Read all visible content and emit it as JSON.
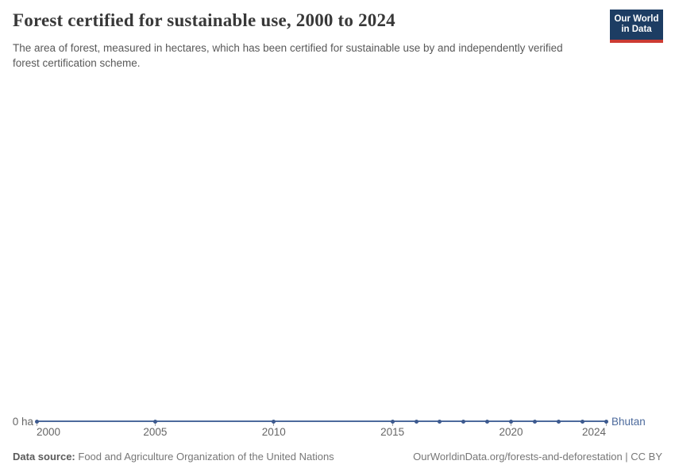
{
  "header": {
    "title": "Forest certified for sustainable use, 2000 to 2024",
    "subtitle": "The area of forest, measured in hectares, which has been certified for sustainable use by and independently verified forest certification scheme.",
    "logo": {
      "line1": "Our World",
      "line2": "in Data",
      "bg_color": "#1d3d63",
      "bar_color": "#cc3b33"
    }
  },
  "chart_data": {
    "type": "line",
    "title": "Forest certified for sustainable use, 2000 to 2024",
    "unit": "ha",
    "grid": false,
    "legend_position": "inline-end-label",
    "x_range": [
      2000,
      2024
    ],
    "x_ticks": [
      2000,
      2005,
      2010,
      2015,
      2020,
      2024
    ],
    "ylim": [
      0,
      0
    ],
    "y_zero_label": "0 ha",
    "series": [
      {
        "name": "Bhutan",
        "color": "#4c6a9c",
        "marker_color": "#3d5a8f",
        "x": [
          2000,
          2005,
          2010,
          2015,
          2016,
          2017,
          2018,
          2019,
          2020,
          2021,
          2022,
          2023,
          2024
        ],
        "values": [
          0,
          0,
          0,
          0,
          0,
          0,
          0,
          0,
          0,
          0,
          0,
          0,
          0
        ]
      }
    ]
  },
  "footer": {
    "data_source_label": "Data source:",
    "data_source_value": "Food and Agriculture Organization of the United Nations",
    "link_text": "OurWorldinData.org/forests-and-deforestation | CC BY"
  }
}
